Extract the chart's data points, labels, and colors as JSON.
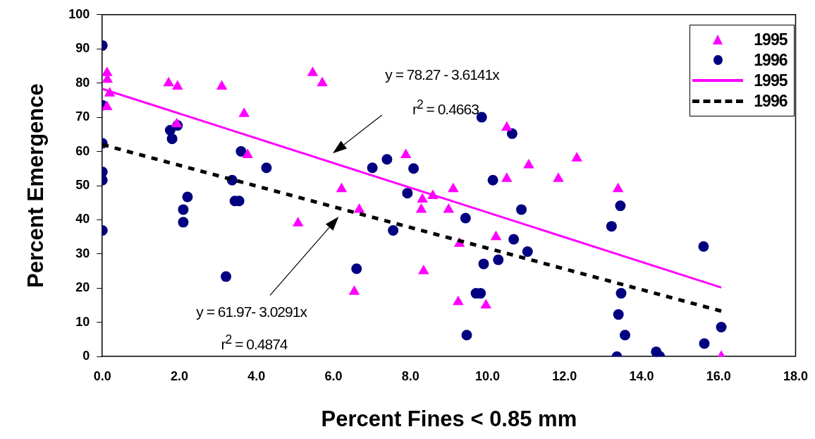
{
  "chart_data": {
    "type": "scatter",
    "xlabel": "Percent Fines < 0.85 mm",
    "ylabel": "Percent Emergence",
    "xlim": [
      0,
      18
    ],
    "xticks": [
      {
        "value": 0,
        "label": "0.0"
      },
      {
        "value": 2,
        "label": "2.0"
      },
      {
        "value": 4,
        "label": "4.0"
      },
      {
        "value": 6,
        "label": "6.0"
      },
      {
        "value": 8,
        "label": "8.0"
      },
      {
        "value": 10,
        "label": "10.0"
      },
      {
        "value": 12,
        "label": "12.0"
      },
      {
        "value": 14,
        "label": "14.0"
      },
      {
        "value": 16,
        "label": "16.0"
      },
      {
        "value": 18,
        "label": "18.0"
      }
    ],
    "ylim": [
      0,
      100
    ],
    "yticks": [
      0,
      10,
      20,
      30,
      40,
      50,
      60,
      70,
      80,
      90,
      100
    ],
    "grid": false,
    "legend": "top right",
    "series": [
      {
        "name": "1995",
        "marker": "triangle",
        "color": "#ff00ff",
        "x": [
          0.12,
          0.13,
          0.19,
          0.12,
          1.72,
          1.95,
          1.93,
          3.1,
          3.68,
          3.77,
          5.08,
          5.46,
          5.71,
          6.21,
          6.67,
          6.54,
          7.88,
          8.31,
          8.28,
          8.58,
          9.11,
          8.99,
          9.27,
          8.34,
          9.24,
          9.96,
          10.22,
          10.5,
          10.5,
          11.07,
          11.84,
          12.32,
          13.39,
          16.07
        ],
        "values": [
          83,
          81,
          77,
          73,
          80,
          79,
          68,
          79,
          71,
          59,
          39,
          83,
          80,
          49,
          43,
          19,
          59,
          46,
          43,
          47,
          49,
          43,
          33,
          25,
          16,
          15,
          35,
          67,
          52,
          56,
          52,
          58,
          49,
          0
        ]
      },
      {
        "name": "1996",
        "marker": "circle",
        "color": "#000080",
        "x": [
          0,
          0,
          0,
          0,
          0,
          0,
          1.76,
          1.81,
          1.95,
          2.21,
          2.1,
          2.1,
          3.21,
          3.37,
          3.44,
          3.55,
          3.6,
          4.26,
          6.6,
          7.01,
          7.39,
          8.08,
          7.92,
          7.55,
          9.43,
          9.46,
          9.85,
          10.64,
          10.14,
          10.88,
          9.9,
          10.28,
          10.68,
          11.04,
          9.7,
          9.82,
          13.45,
          13.22,
          15.61,
          13.47,
          13.4,
          13.57,
          13.36,
          14.38,
          14.47,
          15.63,
          16.07
        ],
        "values": [
          91,
          73.5,
          62.4,
          54,
          51.6,
          36.9,
          66.2,
          63.7,
          67.6,
          46.7,
          43,
          39.3,
          23.4,
          51.6,
          45.5,
          45.5,
          60,
          55.2,
          25.7,
          55.2,
          57.7,
          55,
          47.8,
          36.9,
          40.5,
          6.3,
          70,
          65.2,
          51.6,
          43,
          27.1,
          28.3,
          34.3,
          30.7,
          18.5,
          18.5,
          44.1,
          38.1,
          32.2,
          18.5,
          12.3,
          6.3,
          0,
          1.4,
          0.1,
          3.8,
          8.6
        ]
      },
      {
        "name": "1995",
        "type": "line",
        "marker": "none",
        "line_style": "solid",
        "color": "#ff00ff",
        "x": [
          0,
          16.07
        ],
        "values": [
          78.3,
          20.2
        ]
      },
      {
        "name": "1996",
        "type": "line",
        "marker": "none",
        "line_style": "dashed",
        "color": "#000000",
        "x": [
          0,
          16.07
        ],
        "values": [
          62.0,
          13.3
        ]
      }
    ],
    "annotations": [
      "y = 78.27 - 3.6141x",
      "r$^{2}$ = 0.4663",
      "y = 61.97- 3.0291x",
      "r$^{2}$ = 0.4874"
    ]
  }
}
